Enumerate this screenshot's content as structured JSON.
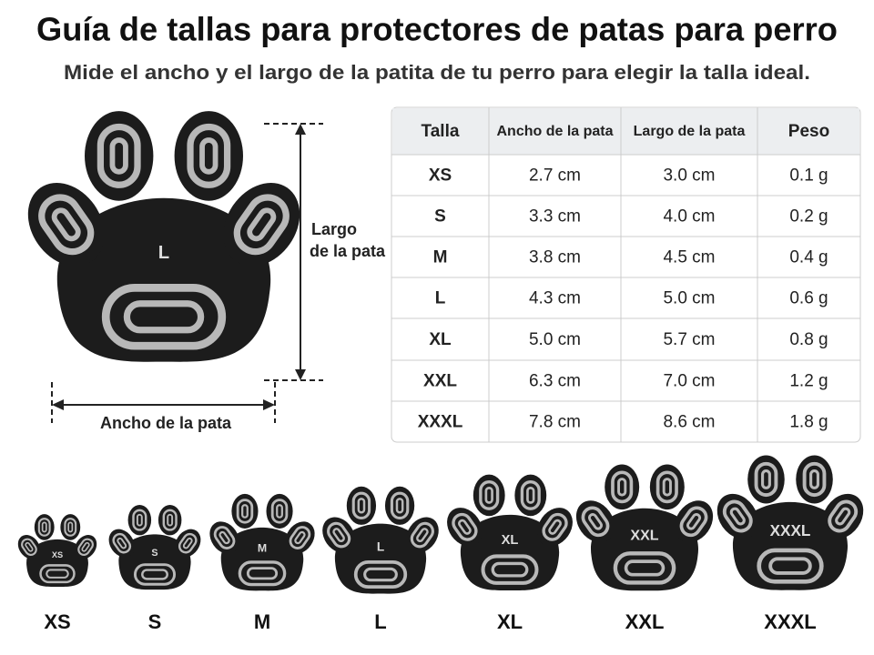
{
  "header": {
    "title": "Guía de tallas para protectores de patas para perro",
    "subtitle": "Mide el ancho y el largo de la patita de tu perro para elegir la talla ideal."
  },
  "diagram": {
    "paw_label": "L",
    "length_label": [
      "Largo",
      "de la pata"
    ],
    "width_label": "Ancho de la pata"
  },
  "table": {
    "header": [
      "Talla",
      "Ancho de la pata",
      "Largo de la pata",
      "Peso"
    ],
    "rows": [
      [
        "XS",
        "2.7 cm",
        "3.0 cm",
        "0.1 g"
      ],
      [
        "S",
        "3.3 cm",
        "4.0 cm",
        "0.2 g"
      ],
      [
        "M",
        "3.8 cm",
        "4.5 cm",
        "0.4 g"
      ],
      [
        "L",
        "4.3 cm",
        "5.0 cm",
        "0.6 g"
      ],
      [
        "XL",
        "5.0 cm",
        "5.7 cm",
        "0.8 g"
      ],
      [
        "XXL",
        "6.3 cm",
        "7.0 cm",
        "1.2 g"
      ],
      [
        "XXXL",
        "7.8 cm",
        "8.6 cm",
        "1.8 g"
      ]
    ]
  },
  "sizes": [
    "XS",
    "S",
    "M",
    "L",
    "XL",
    "XXL",
    "XXXL"
  ]
}
